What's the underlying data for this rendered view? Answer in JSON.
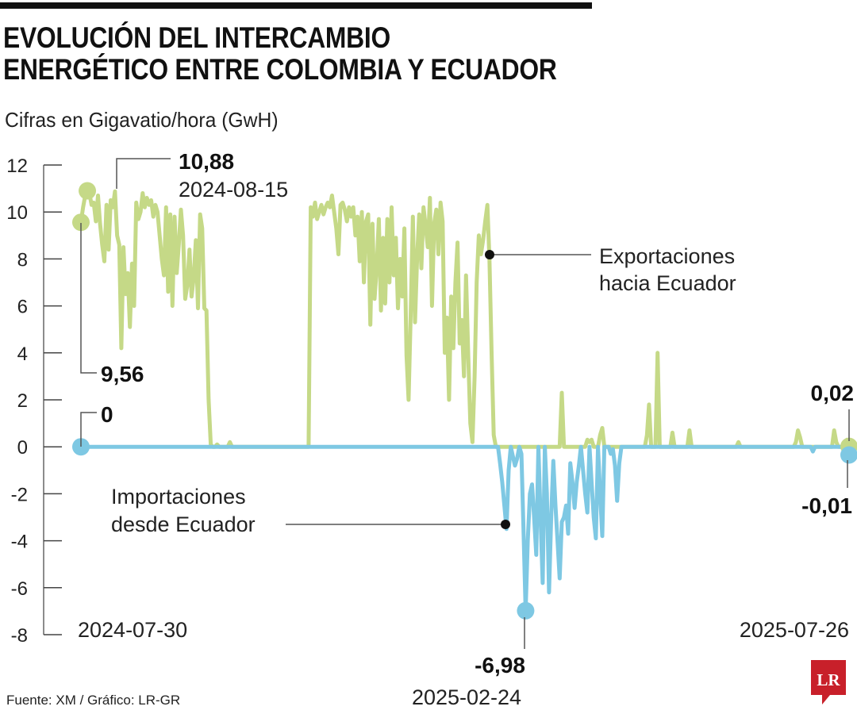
{
  "title_line1": "EVOLUCIÓN DEL INTERCAMBIO",
  "title_line2": "ENERGÉTICO ENTRE COLOMBIA Y ECUADOR",
  "subtitle": "Cifras en Gigavatio/hora (GwH)",
  "source": "Fuente: XM / Gráfico: LR-GR",
  "logo": "LR",
  "colors": {
    "exports": "#c5d987",
    "imports": "#7ec8e3",
    "logo": "#c8202a"
  },
  "chart_data": {
    "type": "line",
    "title": "EVOLUCIÓN DEL INTERCAMBIO ENERGÉTICO ENTRE COLOMBIA Y ECUADOR",
    "ylabel": "Cifras en Gigavatio/hora (GwH)",
    "ylim": [
      -8,
      12
    ],
    "yticks": [
      "12",
      "10",
      "8",
      "6",
      "4",
      "2",
      "0",
      "-2",
      "-4",
      "-6",
      "-8"
    ],
    "x_first": "2024-07-30",
    "x_last": "2025-07-26",
    "frequency": "daily",
    "grid": false,
    "series": [
      {
        "name": "Exportaciones hacia Ecuador",
        "values": [
          9.56,
          10.2,
          10.7,
          10.9,
          10.8,
          10.3,
          10.4,
          9.6,
          10.7,
          9.5,
          8.6,
          7.9,
          10.3,
          8.4,
          10.5,
          10.2,
          10.88,
          9.0,
          8.6,
          4.2,
          8.5,
          6.5,
          7.4,
          5.1,
          7.8,
          6.0,
          10.4,
          9.7,
          10.0,
          10.8,
          10.2,
          10.6,
          10.3,
          10.5,
          9.8,
          10.3,
          10.0,
          9.0,
          8.0,
          7.3,
          10.2,
          6.6,
          9.9,
          6.0,
          9.8,
          7.4,
          8.6,
          10.1,
          9.0,
          6.3,
          6.9,
          8.4,
          6.4,
          7.2,
          8.8,
          5.9,
          9.9,
          9.3,
          5.9,
          5.8,
          2.0,
          0.1,
          0,
          0,
          0.1,
          0,
          0,
          0,
          0,
          0,
          0.2,
          0,
          0,
          0,
          0,
          0,
          0,
          0,
          0,
          0,
          0,
          0,
          0,
          0,
          0,
          0,
          0,
          0,
          0,
          0,
          0,
          0,
          0,
          0,
          0,
          0,
          0,
          0,
          0,
          0,
          0,
          0,
          0,
          0,
          0,
          0,
          0,
          0,
          10.2,
          9.8,
          10.4,
          9.7,
          10.0,
          10.3,
          9.9,
          10.2,
          10.4,
          10.2,
          10.7,
          10.0,
          9.3,
          8.2,
          10.3,
          10.4,
          10.1,
          9.6,
          10.2,
          9.8,
          10.2,
          9.0,
          9.8,
          7.9,
          10.0,
          7.0,
          9.6,
          9.9,
          5.2,
          9.5,
          6.3,
          7.6,
          9.7,
          5.8,
          8.9,
          6.1,
          9.7,
          7.0,
          10.2,
          7.3,
          8.9,
          5.9,
          8.0,
          6.4,
          9.3,
          3.9,
          2.0,
          5.7,
          9.8,
          5.3,
          8.1,
          9.9,
          7.6,
          10.2,
          9.4,
          8.5,
          10.6,
          6.0,
          9.5,
          10.1,
          8.2,
          10.4,
          9.6,
          4.0,
          5.5,
          2.0,
          6.4,
          4.2,
          7.0,
          8.7,
          4.4,
          5.4,
          3.0,
          7.3,
          4.0,
          1.0,
          0.2,
          3.0,
          7.0,
          9.0,
          8.2,
          8.8,
          9.6,
          10.3,
          8.0,
          4.0,
          0.5,
          0,
          0,
          0,
          0,
          0,
          0,
          0,
          0,
          0,
          0,
          0,
          0,
          0,
          0,
          0,
          0,
          0,
          0,
          0,
          0,
          0,
          0,
          0,
          0,
          0,
          0,
          0,
          0,
          0,
          0,
          0,
          2.3,
          0,
          0,
          0,
          0,
          0,
          0,
          0,
          0,
          0,
          0,
          0,
          0.3,
          0.2,
          0.3,
          0,
          0,
          0,
          0.5,
          0.8,
          0,
          0,
          0,
          0,
          0,
          0,
          0,
          0,
          0,
          0,
          0,
          0,
          0,
          0,
          0,
          0,
          0,
          0,
          0,
          0,
          0.5,
          1.8,
          0,
          0,
          0,
          4.0,
          0,
          0,
          0,
          0,
          0,
          0,
          0.6,
          0,
          0,
          0,
          0,
          0,
          0,
          0,
          0.7,
          0,
          0,
          0,
          0,
          0,
          0,
          0,
          0,
          0,
          0,
          0,
          0,
          0,
          0,
          0,
          0,
          0,
          0,
          0,
          0,
          0,
          0,
          0.2,
          0,
          0,
          0,
          0,
          0,
          0,
          0,
          0,
          0,
          0,
          0,
          0,
          0,
          0,
          0,
          0,
          0,
          0,
          0,
          0,
          0,
          0,
          0,
          0,
          0,
          0,
          0.2,
          0.7,
          0.4,
          0,
          0,
          0,
          0,
          0,
          0,
          0,
          0,
          0,
          0,
          0,
          0,
          0,
          0,
          0,
          0.7,
          0.2,
          0,
          0,
          0,
          0,
          0.3,
          0.02
        ]
      },
      {
        "name": "Importaciones desde Ecuador",
        "values": [
          0,
          0,
          0,
          0,
          0,
          0,
          0,
          0,
          0,
          0,
          0,
          0,
          0,
          0,
          0,
          0,
          0,
          0,
          0,
          0,
          0,
          0,
          0,
          0,
          0,
          0,
          0,
          0,
          0,
          0,
          0,
          0,
          0,
          0,
          0,
          0,
          0,
          0,
          0,
          0,
          0,
          0,
          0,
          0,
          0,
          0,
          0,
          0,
          0,
          0,
          0,
          0,
          0,
          0,
          0,
          0,
          0,
          0,
          0,
          0,
          0,
          0,
          0,
          0,
          0,
          0,
          0,
          0,
          0,
          0,
          0,
          0,
          0,
          0,
          0,
          0,
          0,
          0,
          0,
          0,
          0,
          0,
          0,
          0,
          0,
          0,
          0,
          0,
          0,
          0,
          0,
          0,
          0,
          0,
          0,
          0,
          0,
          0,
          0,
          0,
          0,
          0,
          0,
          0,
          0,
          0,
          0,
          0,
          0,
          0,
          0,
          0,
          0,
          0,
          0,
          0,
          0,
          0,
          0,
          0,
          0,
          0,
          0,
          0,
          0,
          0,
          0,
          0,
          0,
          0,
          0,
          0,
          0,
          0,
          0,
          0,
          0,
          0,
          0,
          0,
          0,
          0,
          0,
          0,
          0,
          0,
          0,
          0,
          0,
          0,
          0,
          0,
          0,
          0,
          0,
          0,
          0,
          0,
          0,
          0,
          0,
          0,
          0,
          0,
          0,
          0,
          0,
          0,
          0,
          0,
          0,
          0,
          0,
          0,
          0,
          0,
          0,
          0,
          0,
          0,
          0,
          0,
          0,
          0,
          0,
          0,
          0,
          0,
          0,
          0,
          0,
          0,
          0,
          0,
          0,
          0,
          0,
          -0.7,
          -1.5,
          -2.5,
          -3.5,
          -1.0,
          0,
          -0.4,
          -0.8,
          -0.5,
          0,
          -0.3,
          -3.5,
          -6.98,
          -4.0,
          -2.0,
          -1.6,
          -3.0,
          -4.6,
          0,
          -3.0,
          -5.8,
          0,
          -2.0,
          -6.2,
          -3.0,
          -0.6,
          -2.5,
          -4.0,
          -5.6,
          -3.2,
          -3.0,
          -2.5,
          -3.7,
          -0.7,
          -1.5,
          -2.6,
          -1.5,
          -0.8,
          0,
          -1.0,
          -2.0,
          -2.8,
          0,
          -1.5,
          -3.0,
          -3.9,
          0,
          -2.0,
          -3.8,
          0,
          0,
          0,
          -0.3,
          -0.1,
          -0.8,
          -2.3,
          -0.7,
          0,
          0,
          0,
          0,
          0,
          0,
          0,
          0,
          0,
          0,
          0,
          0,
          0,
          0,
          0,
          0,
          0,
          0,
          0,
          0,
          0,
          0,
          0,
          0,
          0,
          0,
          0,
          0,
          0,
          0,
          0,
          0,
          0,
          0,
          0,
          0,
          0,
          0,
          0,
          0,
          0,
          0,
          0,
          0,
          0,
          0,
          0,
          0,
          0,
          0,
          0,
          0,
          0,
          0,
          0,
          0,
          0,
          0,
          0,
          0,
          0,
          0,
          0,
          0,
          0,
          0,
          0,
          0,
          0,
          0,
          0,
          0,
          0,
          0,
          0,
          0,
          0,
          0,
          0,
          0,
          0,
          0,
          0,
          0,
          0,
          0,
          0,
          0,
          0,
          0,
          -0.2,
          0,
          0,
          0,
          0,
          0,
          0,
          0,
          0,
          0,
          0,
          0,
          0,
          0,
          0,
          0,
          0,
          -0.01
        ]
      }
    ],
    "annotations": {
      "max_value": "10,88",
      "max_date": "2024-08-15",
      "export_start": "9,56",
      "import_start": "0",
      "min_value": "-6,98",
      "min_date": "2025-02-24",
      "export_end": "0,02",
      "import_end": "-0,01",
      "date_start": "2024-07-30",
      "date_end": "2025-07-26",
      "exports_label_1": "Exportaciones",
      "exports_label_2": "hacia Ecuador",
      "imports_label_1": "Importaciones",
      "imports_label_2": "desde Ecuador"
    }
  }
}
